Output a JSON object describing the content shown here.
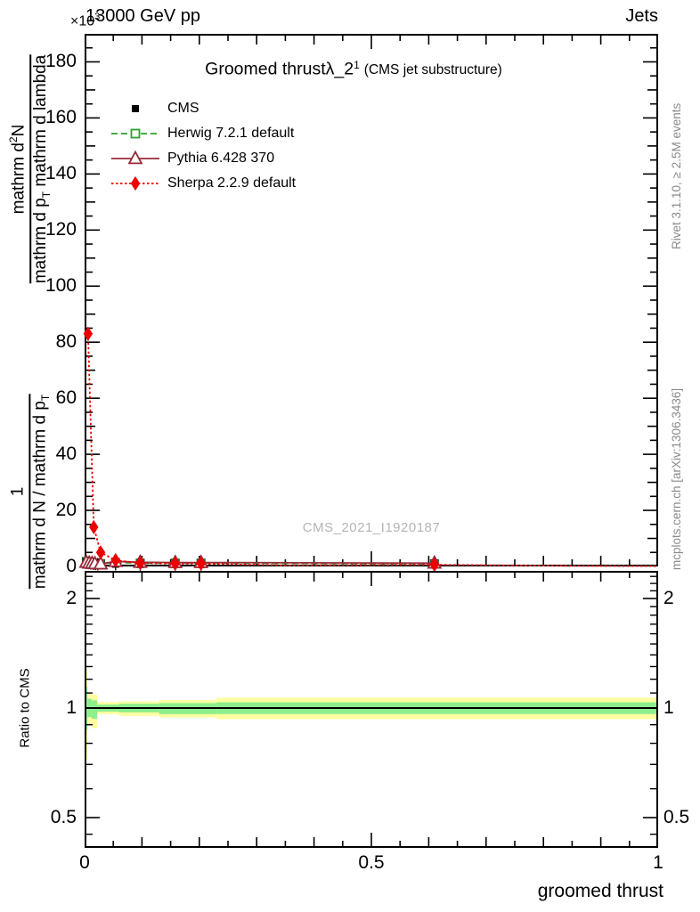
{
  "header": {
    "scale": "×10",
    "scale_sup": "3",
    "beam": "13000 GeV pp",
    "tag": "Jets"
  },
  "title": {
    "main": "Groomed thrust",
    "symbol": "λ_2",
    "sup": "1",
    "context": "(CMS jet substructure)"
  },
  "watermark": "CMS_2021_I1920187",
  "side_notes": {
    "top": "Rivet 3.1.10, ≥ 2.5M events",
    "bottom": "mcplots.cern.ch [arXiv:1306.3436]"
  },
  "axes": {
    "x_label": "groomed thrust",
    "ratio_label": "Ratio to CMS",
    "y_label": {
      "upper_num_a": "mathrm d",
      "upper_num_sup": "2",
      "upper_num_b": "N",
      "upper_den_a": "mathrm d p",
      "upper_den_sub": "T",
      "upper_den_b": " mathrm d lambda",
      "lower_num": "1",
      "lower_den_a": "mathrm d N / mathrm d p",
      "lower_den_sub": "T"
    }
  },
  "chart_data": {
    "type": "line",
    "title": "Groomed thrust λ_2^1 (CMS jet substructure)",
    "xlabel": "groomed thrust",
    "ylabel": "1/(dN/dp_T) d^2N/(dp_T dlambda)",
    "y_units": "×10^3",
    "x_axis": {
      "range": [
        0,
        1
      ],
      "major_values": [
        0,
        0.5,
        1
      ],
      "major_labels": [
        "0",
        "0.5",
        "1"
      ],
      "minor_step": 0.05
    },
    "y_axis_main": {
      "range": [
        0,
        190
      ],
      "major_step": 20,
      "minor_step": 5,
      "major_values": [
        0,
        20,
        40,
        60,
        80,
        100,
        120,
        140,
        160,
        180
      ],
      "major_labels": [
        "0",
        "20",
        "40",
        "60",
        "80",
        "100",
        "120",
        "140",
        "160",
        "180"
      ]
    },
    "ratio_axis": {
      "scale": "log",
      "range": [
        0.41,
        2.38
      ],
      "major_values": [
        0.5,
        1,
        2
      ],
      "major_labels": [
        "0.5",
        "1",
        "2"
      ],
      "minor_values": [
        0.45,
        0.6,
        0.7,
        0.8,
        0.9,
        1.1,
        1.2,
        1.3,
        1.4,
        1.5,
        1.6,
        1.7,
        1.8,
        1.9,
        2.1,
        2.2,
        2.3
      ],
      "reference_line": 1
    },
    "series": [
      {
        "name": "CMS",
        "color": "#000000",
        "marker": "square",
        "fill": true,
        "size": 7,
        "line": "none",
        "error_bars": true,
        "points": [
          [
            0.003,
            1.6
          ],
          [
            0.007,
            1.3
          ],
          [
            0.011,
            1.1
          ],
          [
            0.015,
            1.0
          ],
          [
            0.019,
            0.9
          ],
          [
            0.023,
            0.8
          ],
          [
            0.054,
            0.8
          ],
          [
            0.097,
            0.7
          ],
          [
            0.158,
            0.7
          ],
          [
            0.203,
            0.7
          ],
          [
            0.61,
            0.5
          ]
        ]
      },
      {
        "name": "Herwig 7.2.1 default",
        "color": "#2ca02c",
        "edge": "#14581a",
        "marker": "square",
        "fill": true,
        "size": 9,
        "line": "dashed",
        "legend_marker": "square-open",
        "points": [
          [
            0.003,
            1.8
          ],
          [
            0.008,
            1.5
          ],
          [
            0.013,
            1.3
          ],
          [
            0.018,
            1.2
          ],
          [
            0.023,
            1.1
          ],
          [
            0.028,
            1.0
          ],
          [
            0.054,
            1.4
          ],
          [
            0.097,
            1.2
          ],
          [
            0.158,
            1.2
          ],
          [
            0.203,
            1.2
          ],
          [
            0.61,
            1.0
          ]
        ]
      },
      {
        "name": "Pythia 6.428 370",
        "color": "#992b3a",
        "marker": "triangle",
        "fill": false,
        "size": 12,
        "line": "solid",
        "points": [
          [
            0.003,
            1.5
          ],
          [
            0.008,
            1.2
          ],
          [
            0.013,
            1.1
          ],
          [
            0.018,
            1.0
          ],
          [
            0.028,
            0.9
          ],
          [
            0.054,
            1.8
          ],
          [
            0.097,
            1.5
          ],
          [
            0.158,
            1.4
          ],
          [
            0.203,
            1.4
          ],
          [
            0.61,
            1.2
          ]
        ]
      },
      {
        "name": "Sherpa 2.2.9 default",
        "color": "#ee0000",
        "marker": "diamond",
        "fill": true,
        "size": 11,
        "line": "dotted",
        "points": [
          [
            0.006,
            83
          ],
          [
            0.016,
            14
          ],
          [
            0.028,
            5.0
          ],
          [
            0.054,
            2.2
          ],
          [
            0.097,
            1.2
          ],
          [
            0.158,
            1.0
          ],
          [
            0.203,
            1.0
          ],
          [
            0.61,
            0.6
          ]
        ],
        "line_points": [
          [
            0.006,
            83
          ],
          [
            0.016,
            14
          ],
          [
            0.028,
            5.0
          ],
          [
            0.054,
            2.2
          ],
          [
            0.097,
            1.2
          ],
          [
            0.158,
            1.0
          ],
          [
            0.203,
            1.0
          ],
          [
            0.35,
            0.4
          ],
          [
            0.61,
            0.6
          ],
          [
            0.85,
            0.2
          ],
          [
            1.0,
            0.1
          ]
        ]
      }
    ],
    "ratio": {
      "band_colors": {
        "outer": "#ffffa0",
        "inner": "#8cee8c",
        "line": "#000000"
      },
      "bands": {
        "yellow": [
          [
            0,
            0.005,
            0.72,
            1.28
          ],
          [
            0.005,
            0.012,
            0.9,
            1.1
          ],
          [
            0.012,
            0.022,
            0.88,
            1.09
          ],
          [
            0.022,
            0.06,
            0.962,
            1.038
          ],
          [
            0.06,
            0.13,
            0.952,
            1.042
          ],
          [
            0.13,
            0.23,
            0.942,
            1.052
          ],
          [
            0.23,
            0.997,
            0.932,
            1.068
          ]
        ],
        "green": [
          [
            0,
            0.005,
            0.87,
            1.145
          ],
          [
            0.005,
            0.012,
            0.945,
            1.06
          ],
          [
            0.012,
            0.022,
            0.935,
            1.05
          ],
          [
            0.022,
            0.06,
            0.978,
            1.022
          ],
          [
            0.06,
            0.13,
            0.973,
            1.028
          ],
          [
            0.13,
            0.23,
            0.962,
            1.032
          ],
          [
            0.23,
            0.997,
            0.963,
            1.037
          ]
        ]
      }
    }
  }
}
